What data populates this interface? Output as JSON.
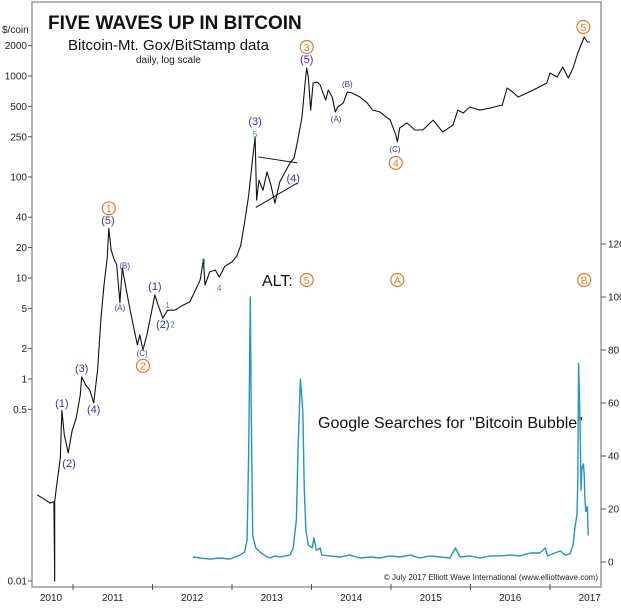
{
  "chart_data": {
    "type": "line",
    "title": "FIVE WAVES UP IN BITCOIN",
    "subtitle": "Bitcoin-Mt. Gox/BitStamp data",
    "note": "daily, log scale",
    "ylabel": "$/coin",
    "y_scale": "log",
    "ylim": [
      0.01,
      3000
    ],
    "yticks": [
      "2000",
      "1000",
      "500",
      "250",
      "100",
      "40",
      "20",
      "10",
      "5",
      "2",
      "1",
      "0.5",
      "0.01"
    ],
    "ytick_values": [
      2000,
      1000,
      500,
      250,
      100,
      40,
      20,
      10,
      5,
      2,
      1,
      0.5,
      0.01
    ],
    "y2lim": [
      0,
      125
    ],
    "y2ticks": [
      "120",
      "100",
      "80",
      "60",
      "40",
      "20",
      "0"
    ],
    "y2tick_values": [
      120,
      100,
      80,
      60,
      40,
      20,
      0
    ],
    "xlim": [
      2010.48,
      2017.65
    ],
    "xticks": [
      "2010",
      "2011",
      "2012",
      "2013",
      "2014",
      "2015",
      "2016",
      "2017"
    ],
    "grid": false,
    "colors": {
      "price": "#111111",
      "searches": "#1f95c9",
      "orange": "#e07b28",
      "blue": "#3434b0",
      "green": "#2f9a5a",
      "frame": "#9a9a9a"
    },
    "series": [
      {
        "name": "Bitcoin price",
        "axis": "left",
        "x": [
          2010.55,
          2010.62,
          2010.71,
          2010.76,
          2010.77,
          2010.77,
          2010.79,
          2010.84,
          2010.86,
          2010.89,
          2010.94,
          2010.99,
          2011.04,
          2011.09,
          2011.11,
          2011.16,
          2011.21,
          2011.26,
          2011.31,
          2011.35,
          2011.39,
          2011.43,
          2011.45,
          2011.48,
          2011.52,
          2011.55,
          2011.59,
          2011.62,
          2011.67,
          2011.72,
          2011.77,
          2011.81,
          2011.84,
          2011.88,
          2011.93,
          2011.98,
          2012.03,
          2012.07,
          2012.13,
          2012.19,
          2012.28,
          2012.37,
          2012.47,
          2012.53,
          2012.6,
          2012.64,
          2012.66,
          2012.72,
          2012.79,
          2012.84,
          2012.91,
          2013.0,
          2013.06,
          2013.11,
          2013.16,
          2013.21,
          2013.25,
          2013.29,
          2013.31,
          2013.34,
          2013.39,
          2013.44,
          2013.49,
          2013.54,
          2013.6,
          2013.68,
          2013.73,
          2013.78,
          2013.82,
          2013.88,
          2013.92,
          2013.94,
          2013.96,
          2013.99,
          2014.02,
          2014.07,
          2014.11,
          2014.14,
          2014.18,
          2014.21,
          2014.26,
          2014.3,
          2014.33,
          2014.4,
          2014.45,
          2014.51,
          2014.61,
          2014.7,
          2014.77,
          2014.86,
          2014.99,
          2015.06,
          2015.08,
          2015.11,
          2015.2,
          2015.3,
          2015.4,
          2015.53,
          2015.65,
          2015.78,
          2015.84,
          2015.91,
          2015.99,
          2016.12,
          2016.25,
          2016.4,
          2016.46,
          2016.53,
          2016.6,
          2016.71,
          2016.84,
          2016.96,
          2017.0,
          2017.09,
          2017.16,
          2017.23,
          2017.29,
          2017.35,
          2017.4,
          2017.43,
          2017.47,
          2017.5
        ],
        "y": [
          0.071,
          0.066,
          0.059,
          0.061,
          0.01,
          0.061,
          0.083,
          0.165,
          0.49,
          0.28,
          0.185,
          0.31,
          0.41,
          0.69,
          1.05,
          0.87,
          0.78,
          0.58,
          1.23,
          3.8,
          8.5,
          15.8,
          31,
          18.9,
          15.1,
          13.5,
          5.7,
          12.6,
          7.6,
          4.8,
          3.06,
          2.17,
          2.73,
          1.94,
          2.73,
          4.3,
          6.8,
          5.4,
          4.0,
          4.8,
          4.8,
          5.3,
          5.8,
          7.3,
          9.6,
          15.1,
          8.5,
          11.5,
          12.0,
          10.2,
          13.1,
          14.4,
          16.5,
          21,
          36,
          66,
          131,
          249,
          59,
          93,
          74,
          112,
          83,
          55,
          89,
          117,
          138,
          154,
          217,
          393,
          853,
          1200,
          977,
          460,
          853,
          873,
          815,
          695,
          578,
          726,
          620,
          440,
          493,
          541,
          695,
          679,
          620,
          541,
          460,
          440,
          366,
          261,
          222,
          306,
          343,
          292,
          292,
          366,
          279,
          327,
          460,
          430,
          493,
          460,
          482,
          516,
          760,
          695,
          620,
          679,
          760,
          853,
          1071,
          977,
          1228,
          955,
          1200,
          1690,
          2123,
          2432,
          2173,
          2173
        ]
      },
      {
        "name": "Google Searches for \"Bitcoin Bubble\"",
        "axis": "right",
        "x": [
          2012.51,
          2012.6,
          2012.72,
          2012.85,
          2012.97,
          2013.1,
          2013.16,
          2013.19,
          2013.21,
          2013.23,
          2013.24,
          2013.26,
          2013.3,
          2013.35,
          2013.42,
          2013.48,
          2013.54,
          2013.6,
          2013.67,
          2013.73,
          2013.77,
          2013.81,
          2013.83,
          2013.86,
          2013.89,
          2013.91,
          2013.93,
          2013.96,
          2014.01,
          2014.03,
          2014.06,
          2014.11,
          2014.13,
          2014.23,
          2014.36,
          2014.48,
          2014.61,
          2014.74,
          2014.86,
          2014.99,
          2015.11,
          2015.24,
          2015.36,
          2015.49,
          2015.62,
          2015.74,
          2015.81,
          2015.87,
          2015.99,
          2016.12,
          2016.25,
          2016.37,
          2016.5,
          2016.62,
          2016.75,
          2016.87,
          2016.94,
          2016.97,
          2017.13,
          2017.19,
          2017.25,
          2017.29,
          2017.31,
          2017.34,
          2017.35,
          2017.36,
          2017.38,
          2017.39,
          2017.4,
          2017.42,
          2017.43,
          2017.44,
          2017.45,
          2017.47,
          2017.48
        ],
        "y": [
          1.9,
          1.5,
          1.1,
          1.5,
          1.1,
          2.6,
          3.8,
          8.3,
          42,
          100,
          61,
          10,
          5.3,
          3.8,
          2.3,
          1.5,
          2.3,
          1.9,
          2.3,
          2.6,
          5.3,
          16,
          42,
          69,
          57,
          27,
          12,
          6.4,
          5.3,
          9.1,
          4.5,
          5.3,
          2.6,
          2.3,
          1.9,
          2.6,
          1.5,
          1.9,
          1.5,
          2.3,
          1.9,
          2.6,
          1.5,
          2.3,
          1.9,
          1.5,
          5.3,
          1.9,
          2.3,
          1.5,
          2.3,
          2.3,
          2.6,
          2.3,
          3.4,
          3.4,
          5.3,
          2.3,
          4.2,
          2.6,
          3.0,
          6.4,
          12,
          18,
          31,
          75,
          50,
          27,
          35,
          37,
          33,
          23,
          19,
          21,
          10
        ]
      }
    ],
    "wave_labels": [
      {
        "text": "1",
        "style": "orange-circle",
        "x": 2011.45,
        "y": 49
      },
      {
        "text": "2",
        "style": "orange-circle",
        "x": 2011.88,
        "y": 1.35
      },
      {
        "text": "3",
        "style": "orange-circle",
        "x": 2013.94,
        "y": 1936
      },
      {
        "text": "4",
        "style": "orange-circle",
        "x": 2015.06,
        "y": 138
      },
      {
        "text": "5",
        "style": "orange-circle",
        "x": 2017.42,
        "y": 3055
      },
      {
        "text": "(1)",
        "style": "blue",
        "x": 2010.86,
        "y": 0.55
      },
      {
        "text": "(2)",
        "style": "blue",
        "x": 2010.95,
        "y": 0.14
      },
      {
        "text": "(3)",
        "style": "blue",
        "x": 2011.11,
        "y": 1.23
      },
      {
        "text": "(4)",
        "style": "blue",
        "x": 2011.26,
        "y": 0.48
      },
      {
        "text": "(5)",
        "style": "blue",
        "x": 2011.44,
        "y": 36
      },
      {
        "text": "(A)",
        "style": "blue-small",
        "x": 2011.59,
        "y": 5
      },
      {
        "text": "(B)",
        "style": "blue-small",
        "x": 2011.65,
        "y": 13
      },
      {
        "text": "(C)",
        "style": "blue-small",
        "x": 2011.87,
        "y": 1.77
      },
      {
        "text": "(1)",
        "style": "blue",
        "x": 2012.03,
        "y": 8
      },
      {
        "text": "(2)",
        "style": "blue",
        "x": 2012.13,
        "y": 3.35
      },
      {
        "text": "1",
        "style": "green",
        "x": 2012.19,
        "y": 5.9
      },
      {
        "text": "2",
        "style": "green",
        "x": 2012.25,
        "y": 3.8
      },
      {
        "text": "3",
        "style": "green",
        "x": 2012.64,
        "y": 16
      },
      {
        "text": "4",
        "style": "green",
        "x": 2012.84,
        "y": 8.7
      },
      {
        "text": "(3)",
        "style": "blue",
        "x": 2013.29,
        "y": 343
      },
      {
        "text": "5",
        "style": "green",
        "x": 2013.29,
        "y": 292
      },
      {
        "text": "(4)",
        "style": "blue",
        "x": 2013.77,
        "y": 93
      },
      {
        "text": "(5)",
        "style": "blue",
        "x": 2013.94,
        "y": 1408
      },
      {
        "text": "(A)",
        "style": "blue-small",
        "x": 2014.31,
        "y": 366
      },
      {
        "text": "(B)",
        "style": "blue-small",
        "x": 2014.45,
        "y": 815
      },
      {
        "text": "(C)",
        "style": "blue-small",
        "x": 2015.05,
        "y": 185
      }
    ],
    "triangle": {
      "upper": [
        [
          2013.33,
          158
        ],
        [
          2013.82,
          138
        ]
      ],
      "lower": [
        [
          2013.3,
          50
        ],
        [
          2013.82,
          87
        ]
      ]
    },
    "alt_count": {
      "label": "ALT:",
      "marks": [
        {
          "text": "5",
          "x": 2013.94
        },
        {
          "text": "A",
          "x": 2015.08
        },
        {
          "text": "B",
          "x": 2017.43
        }
      ]
    },
    "searches_label": "Google Searches for \"Bitcoin Bubble\"",
    "copyright": "© July 2017 Elliott Wave International (www.elliottwave.com)"
  }
}
